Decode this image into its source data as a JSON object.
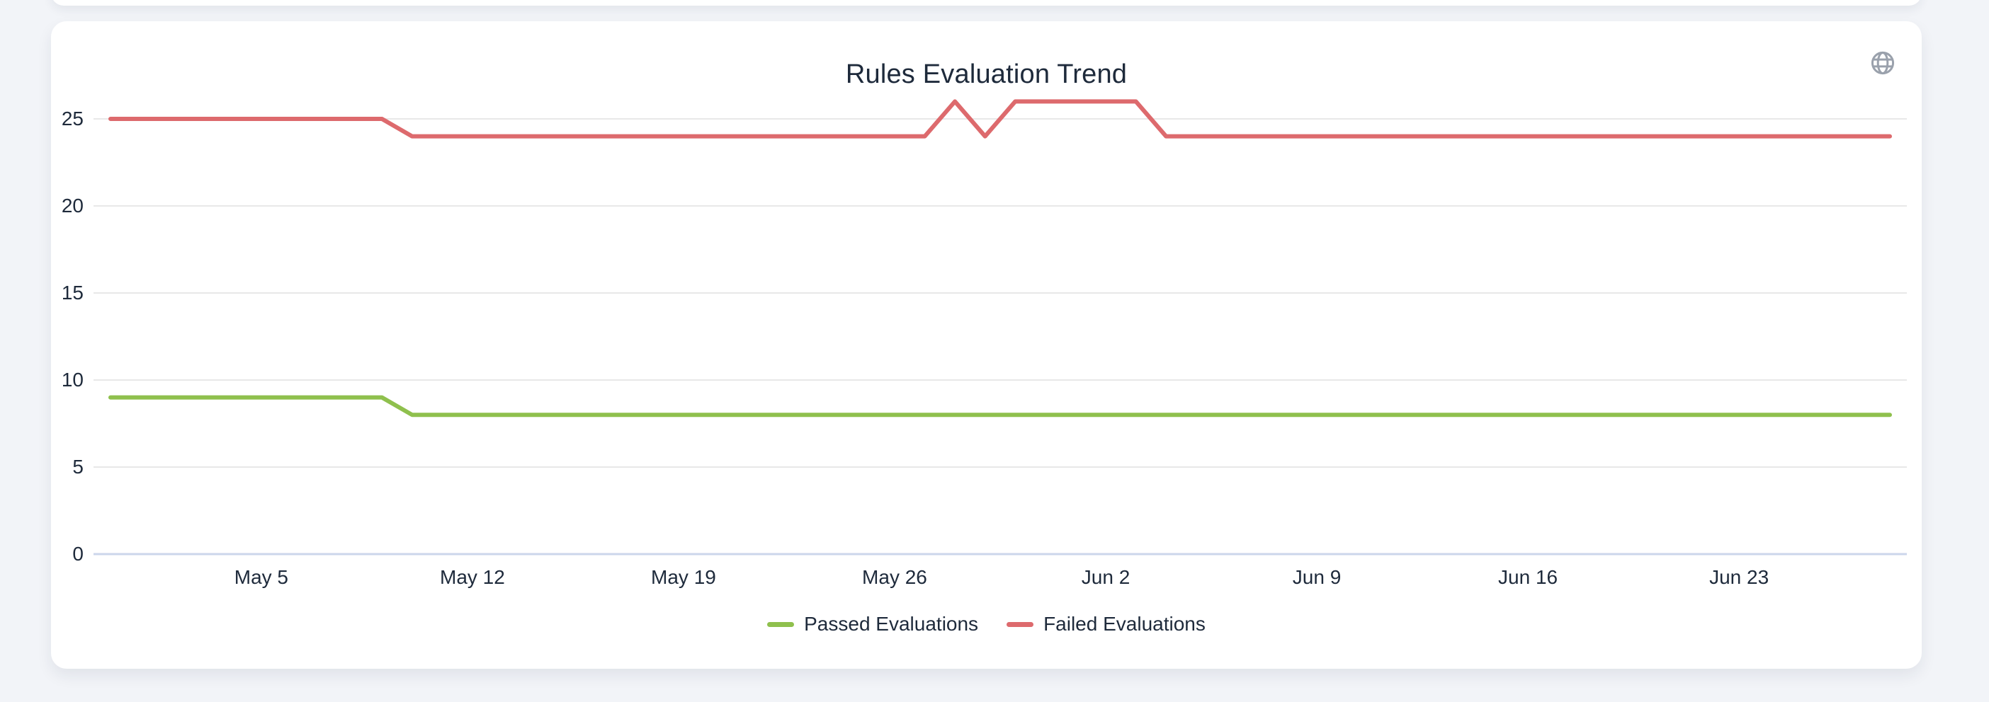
{
  "page": {
    "background_color": "#f2f4f8",
    "card_color": "#ffffff"
  },
  "header": {
    "title": "Rules Evaluation Trend",
    "icon": "globe",
    "icon_color": "#9aa1ac"
  },
  "chart_data": {
    "type": "line",
    "title": "Rules Evaluation Trend",
    "xlabel": "",
    "ylabel": "",
    "x_tick_labels": [
      "May 5",
      "May 12",
      "May 19",
      "May 26",
      "Jun 2",
      "Jun 9",
      "Jun 16",
      "Jun 23"
    ],
    "x_tick_indices": [
      5,
      12,
      19,
      26,
      33,
      40,
      47,
      54
    ],
    "n_points": 60,
    "y_ticks": [
      0,
      5,
      10,
      15,
      20,
      25
    ],
    "ylim": [
      0,
      27.5
    ],
    "grid": true,
    "legend_position": "bottom",
    "colors": {
      "grid": "#e8e8e8",
      "axis_line": "#ccd6eb",
      "label": "#1e2a3b"
    },
    "series": [
      {
        "name": "Passed Evaluations",
        "color": "#8fc04d",
        "values": [
          9,
          9,
          9,
          9,
          9,
          9,
          9,
          9,
          9,
          9,
          8,
          8,
          8,
          8,
          8,
          8,
          8,
          8,
          8,
          8,
          8,
          8,
          8,
          8,
          8,
          8,
          8,
          8,
          8,
          8,
          8,
          8,
          8,
          8,
          8,
          8,
          8,
          8,
          8,
          8,
          8,
          8,
          8,
          8,
          8,
          8,
          8,
          8,
          8,
          8,
          8,
          8,
          8,
          8,
          8,
          8,
          8,
          8,
          8,
          8
        ]
      },
      {
        "name": "Failed Evaluations",
        "color": "#dd6a6d",
        "values": [
          25,
          25,
          25,
          25,
          25,
          25,
          25,
          25,
          25,
          25,
          24,
          24,
          24,
          24,
          24,
          24,
          24,
          24,
          24,
          24,
          24,
          24,
          24,
          24,
          24,
          24,
          24,
          24,
          26,
          24,
          26,
          26,
          26,
          26,
          26,
          24,
          24,
          24,
          24,
          24,
          24,
          24,
          24,
          24,
          24,
          24,
          24,
          24,
          24,
          24,
          24,
          24,
          24,
          24,
          24,
          24,
          24,
          24,
          24,
          24
        ]
      }
    ]
  }
}
